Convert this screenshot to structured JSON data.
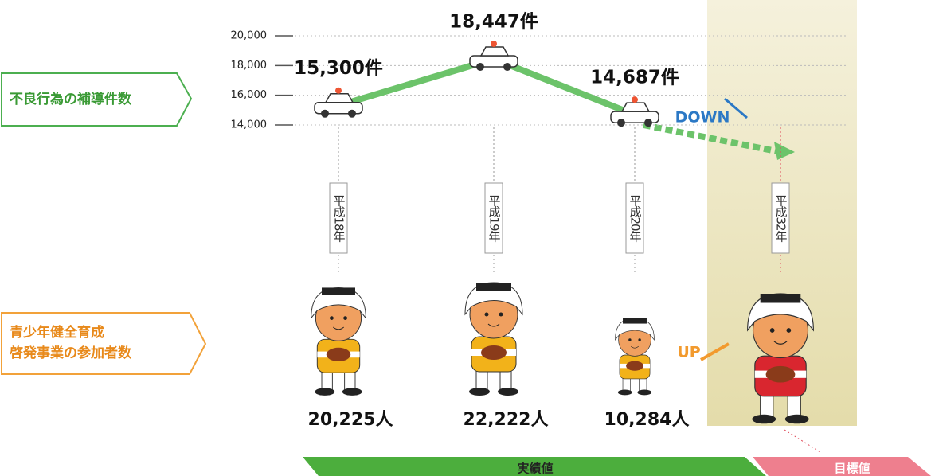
{
  "chart_data": {
    "type": "line",
    "categories": [
      "平成18年",
      "平成19年",
      "平成20年",
      "平成32年"
    ],
    "series": [
      {
        "name": "不良行為の補導件数",
        "color": "#6cc36a",
        "values": [
          15300,
          18447,
          14687,
          null
        ],
        "value_labels": [
          "15,300件",
          "18,447件",
          "14,687件",
          null
        ]
      },
      {
        "name": "青少年健全育成\n啓発事業の参加者数",
        "color": "#f29a2e",
        "values": [
          20225,
          22222,
          10284,
          null
        ],
        "value_labels": [
          "20,225人",
          "22,222人",
          "10,284人",
          null
        ]
      }
    ],
    "ylim": [
      14000,
      20000
    ],
    "yticks": [
      {
        "value": 14000,
        "label": "14,000"
      },
      {
        "value": 16000,
        "label": "16,000"
      },
      {
        "value": 18000,
        "label": "18,000"
      },
      {
        "value": 20000,
        "label": "20,000"
      }
    ],
    "grid": true,
    "annotations": {
      "down": "DOWN",
      "up": "UP",
      "actual": "実績値",
      "target": "目標値"
    }
  }
}
